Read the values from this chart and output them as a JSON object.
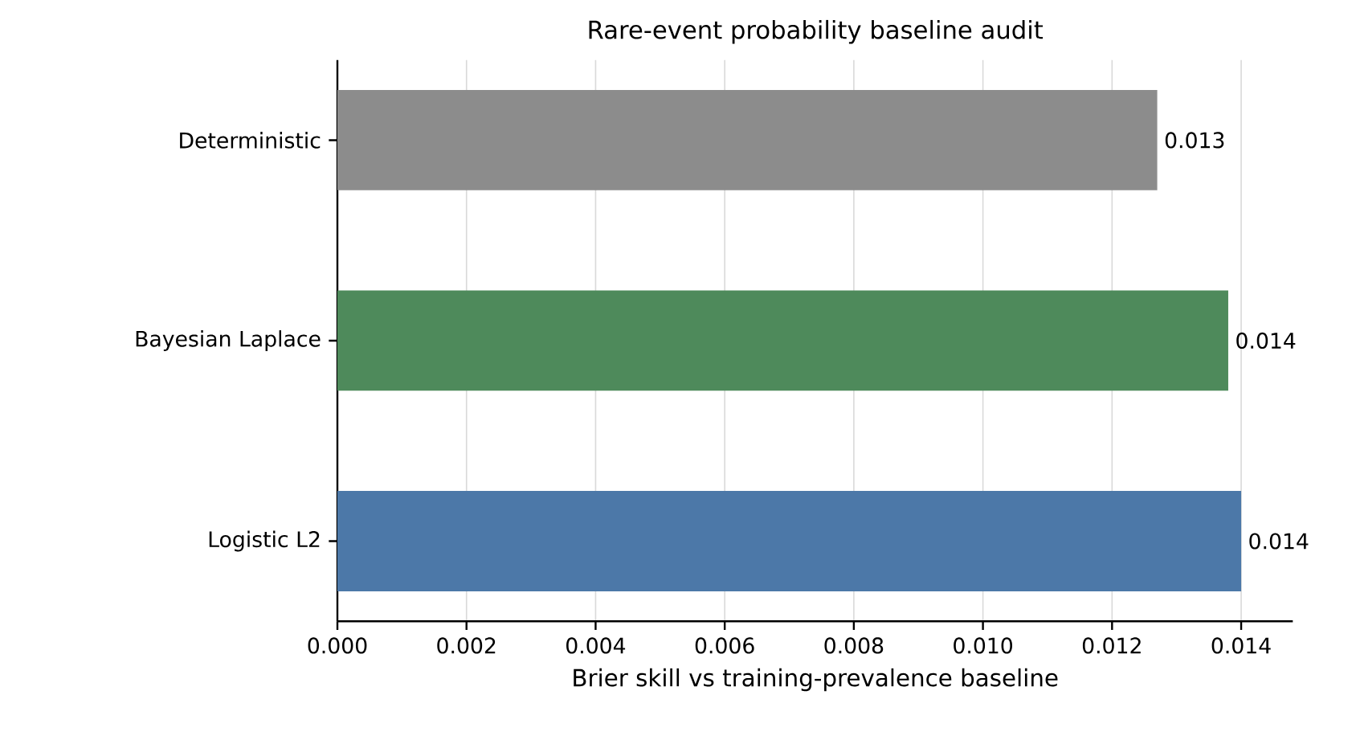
{
  "chart_data": {
    "type": "bar",
    "orientation": "horizontal",
    "title": "Rare-event probability baseline audit",
    "xlabel": "Brier skill vs training-prevalence baseline",
    "categories": [
      "Deterministic",
      "Bayesian Laplace",
      "Logistic L2"
    ],
    "values": [
      0.0127,
      0.0138,
      0.014
    ],
    "colors": [
      "#8c8c8c",
      "#4e8a5b",
      "#4c78a8"
    ],
    "value_labels": [
      "0.013",
      "0.014",
      "0.014"
    ],
    "xlim": [
      0,
      0.0148
    ],
    "xticks": [
      {
        "value": 0,
        "label": "0.000"
      },
      {
        "value": 0.002,
        "label": "0.002"
      },
      {
        "value": 0.004,
        "label": "0.004"
      },
      {
        "value": 0.006,
        "label": "0.006"
      },
      {
        "value": 0.008,
        "label": "0.008"
      },
      {
        "value": 0.01,
        "label": "0.010"
      },
      {
        "value": 0.012,
        "label": "0.012"
      },
      {
        "value": 0.014,
        "label": "0.014"
      }
    ],
    "grid": "x"
  }
}
